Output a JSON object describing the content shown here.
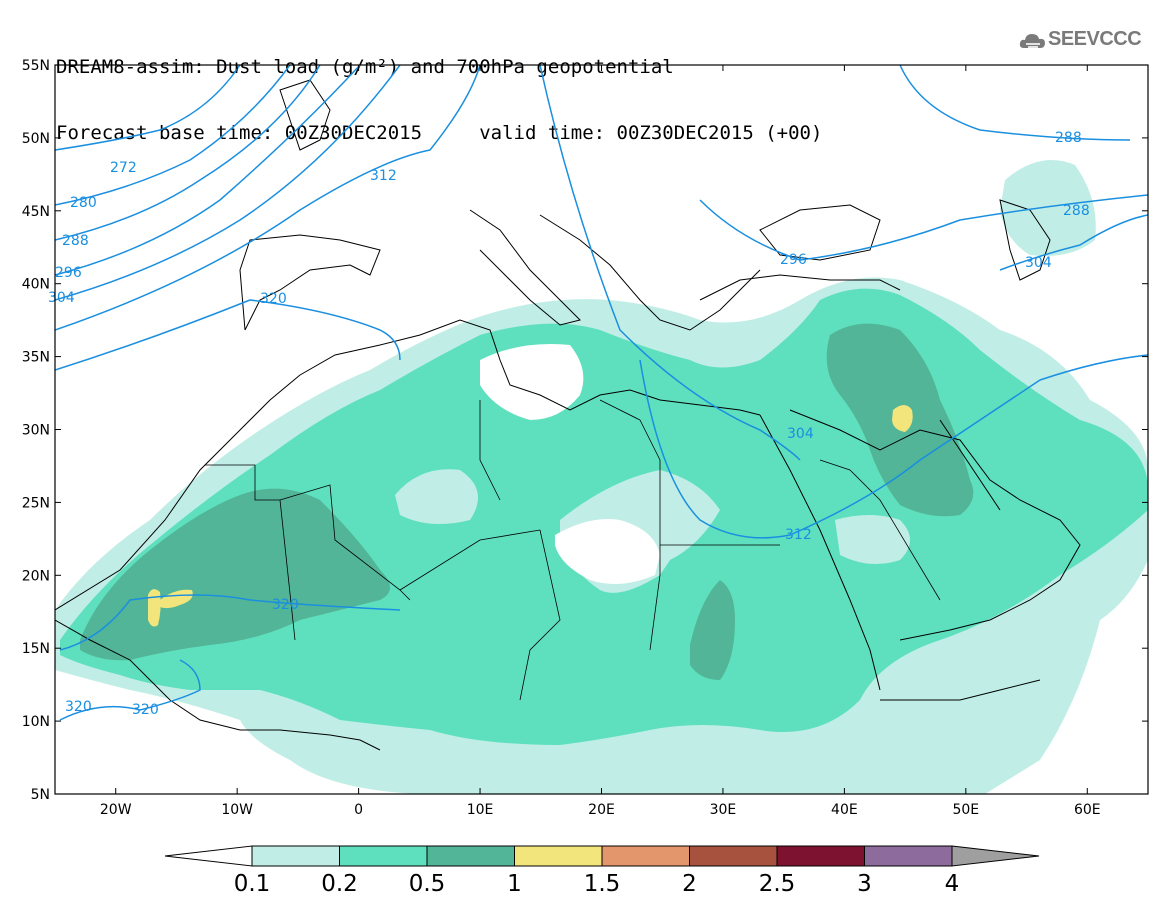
{
  "title": {
    "line1": "DREAM8-assim: Dust load (g/m²) and 700hPa geopotential",
    "line2": "Forecast base time: 00Z30DEC2015     valid time: 00Z30DEC2015 (+00)"
  },
  "logo": {
    "text": "SEEVCCC",
    "icon": "cloud-icon"
  },
  "map": {
    "lon_range": [
      -25,
      65
    ],
    "lat_range": [
      5,
      55
    ],
    "lat_labels": [
      "55N",
      "50N",
      "45N",
      "40N",
      "35N",
      "30N",
      "25N",
      "20N",
      "15N",
      "10N",
      "5N"
    ],
    "lon_labels": [
      "20W",
      "10W",
      "0",
      "10E",
      "20E",
      "30E",
      "40E",
      "50E",
      "60E"
    ],
    "contour_labels": [
      "272",
      "280",
      "288",
      "296",
      "304",
      "312",
      "320",
      "320",
      "320",
      "320",
      "304",
      "312",
      "296",
      "288",
      "288",
      "304"
    ]
  },
  "colorbar": {
    "colors": [
      "#ffffff",
      "#c0eee6",
      "#5ee0be",
      "#52b597",
      "#f2e57b",
      "#e3956b",
      "#a7523f",
      "#7c1230",
      "#8d6b9c",
      "#9f9f9f"
    ],
    "labels": [
      "0.1",
      "0.2",
      "0.5",
      "1",
      "1.5",
      "2",
      "2.5",
      "3",
      "4"
    ]
  }
}
